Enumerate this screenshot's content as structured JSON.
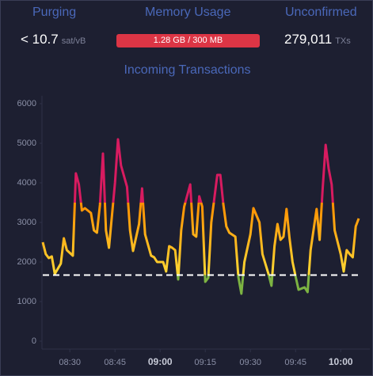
{
  "header": {
    "labels": [
      "Purging",
      "Memory Usage",
      "Unconfirmed"
    ],
    "purging": {
      "value": "< 10.7",
      "unit": "sat/vB"
    },
    "memory": {
      "text": "1.28 GB / 300 MB"
    },
    "unconfirmed": {
      "value": "279,011",
      "unit": "TXs"
    }
  },
  "chart_data": {
    "type": "line",
    "title": "Incoming Transactions",
    "x": [
      "08:21",
      "08:22",
      "08:23",
      "08:24",
      "08:25",
      "08:27",
      "08:28",
      "08:29",
      "08:31",
      "08:32",
      "08:33",
      "08:34",
      "08:35",
      "08:37",
      "08:38",
      "08:39",
      "08:40",
      "08:41",
      "08:42",
      "08:43",
      "08:45",
      "08:46",
      "08:47",
      "08:49",
      "08:50",
      "08:51",
      "08:53",
      "08:54",
      "08:55",
      "08:57",
      "08:58",
      "08:59",
      "09:01",
      "09:02",
      "09:03",
      "09:04",
      "09:05",
      "09:06",
      "09:07",
      "09:08",
      "09:10",
      "09:11",
      "09:12",
      "09:13",
      "09:14",
      "09:15",
      "09:16",
      "09:17",
      "09:19",
      "09:20",
      "09:21",
      "09:22",
      "09:23",
      "09:25",
      "09:26",
      "09:27",
      "09:28",
      "09:30",
      "09:31",
      "09:33",
      "09:34",
      "09:36",
      "09:37",
      "09:38",
      "09:39",
      "09:40",
      "09:41",
      "09:42",
      "09:43",
      "09:44",
      "09:45",
      "09:46",
      "09:48",
      "09:49",
      "09:50",
      "09:52",
      "09:53",
      "09:54",
      "09:55",
      "09:56",
      "09:57",
      "09:58",
      "10:00",
      "10:01",
      "10:02",
      "10:03",
      "10:04",
      "10:05",
      "10:06"
    ],
    "series": [
      {
        "values": [
          2500,
          2200,
          2100,
          2140,
          1700,
          1960,
          2600,
          2300,
          2160,
          4240,
          3960,
          3300,
          3360,
          3240,
          2800,
          2740,
          3440,
          4740,
          2800,
          2360,
          4000,
          5100,
          4440,
          3900,
          2800,
          2280,
          2960,
          3860,
          2700,
          2160,
          2120,
          2000,
          2000,
          1760,
          2400,
          2360,
          2300,
          1560,
          2800,
          3400,
          3960,
          2700,
          2640,
          3660,
          3400,
          1500,
          1600,
          3000,
          4200,
          4200,
          3460,
          2900,
          2740,
          2640,
          1620,
          1200,
          2000,
          2700,
          3360,
          3000,
          2200,
          1700,
          1400,
          2400,
          2960,
          2560,
          2640,
          3340,
          2600,
          2000,
          1640,
          1300,
          1360,
          1240,
          2300,
          3340,
          2560,
          3840,
          4960,
          4360,
          3960,
          2800,
          2200,
          1760,
          2300,
          2200,
          2120,
          2900,
          3100
        ]
      }
    ],
    "color_scale": [
      {
        "value": 0,
        "color": "#7cb342"
      },
      {
        "value": 1670,
        "color": "#7cb342"
      },
      {
        "value": 1670,
        "color": "#fdd835"
      },
      {
        "value": 3500,
        "color": "#ff8f00"
      },
      {
        "value": 3500,
        "color": "#d81b60"
      },
      {
        "value": 6000,
        "color": "#d81b60"
      }
    ],
    "threshold": 1670,
    "xlim": [
      "08:21",
      "10:06"
    ],
    "xticks": [
      "08:30",
      "08:45",
      "09:00",
      "09:15",
      "09:30",
      "09:45",
      "10:00"
    ],
    "ylim": [
      0,
      6000
    ],
    "yticks": [
      0,
      1000,
      2000,
      3000,
      4000,
      5000,
      6000
    ]
  }
}
